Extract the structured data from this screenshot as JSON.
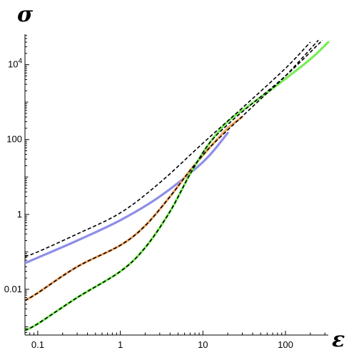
{
  "chart_data": {
    "type": "line",
    "xlabel": "ε",
    "ylabel": "σ",
    "xscale": "log",
    "yscale": "log",
    "xlim": [
      0.07,
      330
    ],
    "ylim": [
      0.0006,
      65000
    ],
    "xticks": [
      {
        "value": 0.1,
        "label": "0.1"
      },
      {
        "value": 1,
        "label": "1"
      },
      {
        "value": 10,
        "label": "10"
      },
      {
        "value": 100,
        "label": "100"
      }
    ],
    "yticks": [
      {
        "value": 0.01,
        "label": "0.01"
      },
      {
        "value": 1,
        "label": "1"
      },
      {
        "value": 100,
        "label": "100"
      },
      {
        "value": 10000,
        "label": "10^4"
      }
    ],
    "grid": false,
    "legend": "none",
    "series": [
      {
        "style": "solid",
        "color": "#8e8ee8",
        "x": [
          0.07,
          0.1,
          0.3,
          1,
          3,
          10,
          20
        ],
        "y": [
          0.05,
          0.07,
          0.2,
          0.7,
          3,
          25,
          150
        ]
      },
      {
        "style": "solid",
        "color": "#f4a460",
        "x": [
          0.07,
          0.1,
          0.3,
          1,
          2,
          4,
          7,
          12,
          20,
          30
        ],
        "y": [
          0.005,
          0.008,
          0.04,
          0.15,
          0.5,
          3,
          15,
          60,
          200,
          400
        ]
      },
      {
        "style": "solid",
        "color": "#77ee55",
        "x": [
          0.07,
          0.1,
          0.3,
          1,
          2,
          4,
          7,
          12,
          20,
          30,
          60,
          100,
          200,
          330
        ],
        "y": [
          0.0008,
          0.0012,
          0.006,
          0.03,
          0.13,
          1.2,
          12,
          80,
          300,
          600,
          1800,
          4200,
          14000,
          40000
        ]
      },
      {
        "style": "dashed",
        "color": "#000000",
        "x": [
          0.07,
          0.1,
          0.3,
          1,
          3,
          10,
          30,
          100,
          200
        ],
        "y": [
          0.075,
          0.1,
          0.3,
          1.1,
          7,
          80,
          700,
          8000,
          40000
        ]
      },
      {
        "style": "dashed",
        "color": "#000000",
        "x": [
          0.07,
          0.1,
          0.3,
          1,
          2,
          4,
          7,
          12,
          20,
          50,
          100,
          250
        ],
        "y": [
          0.005,
          0.008,
          0.04,
          0.15,
          0.5,
          3,
          15,
          60,
          180,
          1200,
          5000,
          45000
        ]
      },
      {
        "style": "dashed",
        "color": "#000000",
        "x": [
          0.07,
          0.1,
          0.3,
          1,
          2,
          4,
          7,
          12,
          20,
          30,
          100,
          280
        ],
        "y": [
          0.0008,
          0.0012,
          0.006,
          0.03,
          0.13,
          1.2,
          12,
          80,
          250,
          550,
          5000,
          45000
        ]
      }
    ]
  }
}
